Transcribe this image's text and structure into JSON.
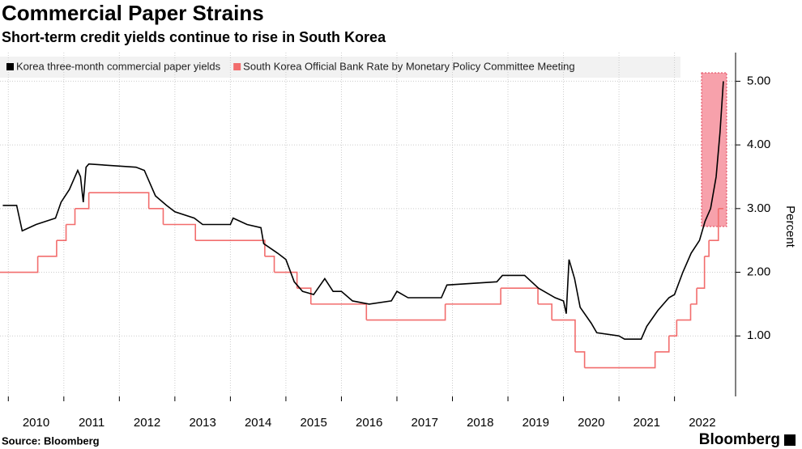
{
  "chart_data": {
    "type": "line",
    "title": "Commercial Paper Strains",
    "subtitle": "Short-term credit yields continue to rise in South Korea",
    "y_label": "Percent",
    "source": "Source: Bloomberg",
    "brand": "Bloomberg",
    "xlim": [
      2009.85,
      2023.1
    ],
    "xticks": [
      2010,
      2011,
      2012,
      2013,
      2014,
      2015,
      2016,
      2017,
      2018,
      2019,
      2020,
      2021,
      2022
    ],
    "ylim": [
      0.05,
      5.45
    ],
    "yticks": [
      {
        "value": 1,
        "label": "1.00"
      },
      {
        "value": 2,
        "label": "2.00"
      },
      {
        "value": 3,
        "label": "3.00"
      },
      {
        "value": 4,
        "label": "4.00"
      },
      {
        "value": 5,
        "label": "5.00"
      }
    ],
    "grid": true,
    "series": [
      {
        "name": "Korea three-month commercial paper yields",
        "color": "#000000",
        "step": false,
        "x": [
          2009.9,
          2010.15,
          2010.25,
          2010.5,
          2010.85,
          2010.95,
          2011.1,
          2011.25,
          2011.3,
          2011.35,
          2011.4,
          2011.45,
          2012.3,
          2012.45,
          2012.65,
          2012.85,
          2013.0,
          2013.35,
          2013.5,
          2014.0,
          2014.05,
          2014.3,
          2014.55,
          2014.6,
          2014.85,
          2015.0,
          2015.15,
          2015.3,
          2015.5,
          2015.7,
          2015.85,
          2016.0,
          2016.2,
          2016.5,
          2016.9,
          2017.0,
          2017.2,
          2017.8,
          2017.9,
          2018.8,
          2018.9,
          2019.3,
          2019.55,
          2019.85,
          2020.0,
          2020.05,
          2020.1,
          2020.2,
          2020.3,
          2020.5,
          2020.6,
          2021.0,
          2021.1,
          2021.4,
          2021.5,
          2021.7,
          2021.9,
          2022.0,
          2022.15,
          2022.3,
          2022.45,
          2022.55,
          2022.65,
          2022.75,
          2022.82,
          2022.88
        ],
        "values": [
          3.05,
          3.05,
          2.65,
          2.75,
          2.85,
          3.1,
          3.3,
          3.6,
          3.5,
          3.1,
          3.65,
          3.7,
          3.65,
          3.6,
          3.2,
          3.05,
          2.95,
          2.85,
          2.75,
          2.75,
          2.85,
          2.75,
          2.7,
          2.45,
          2.3,
          2.2,
          1.85,
          1.7,
          1.65,
          1.9,
          1.7,
          1.7,
          1.55,
          1.5,
          1.55,
          1.7,
          1.6,
          1.6,
          1.8,
          1.85,
          1.95,
          1.95,
          1.75,
          1.6,
          1.55,
          1.35,
          2.2,
          1.9,
          1.45,
          1.2,
          1.05,
          1.0,
          0.95,
          0.95,
          1.15,
          1.4,
          1.6,
          1.65,
          2.0,
          2.3,
          2.5,
          2.8,
          3.0,
          3.5,
          4.2,
          5.0
        ]
      },
      {
        "name": "South Korea Official Bank Rate by Monetary Policy Committee Meeting",
        "color": "#f26d6d",
        "step": true,
        "x": [
          2009.85,
          2010.53,
          2010.87,
          2011.04,
          2011.2,
          2011.45,
          2012.53,
          2012.79,
          2013.37,
          2014.62,
          2014.79,
          2015.2,
          2015.45,
          2016.45,
          2017.87,
          2018.87,
          2019.54,
          2019.79,
          2020.21,
          2020.38,
          2021.65,
          2021.9,
          2022.04,
          2022.29,
          2022.4,
          2022.54,
          2022.62,
          2022.79,
          2022.88
        ],
        "values": [
          2.0,
          2.25,
          2.5,
          2.75,
          3.0,
          3.25,
          3.0,
          2.75,
          2.5,
          2.25,
          2.0,
          1.75,
          1.5,
          1.25,
          1.5,
          1.75,
          1.5,
          1.25,
          0.75,
          0.5,
          0.75,
          1.0,
          1.25,
          1.5,
          1.75,
          2.25,
          2.5,
          3.0,
          3.0
        ]
      }
    ]
  }
}
